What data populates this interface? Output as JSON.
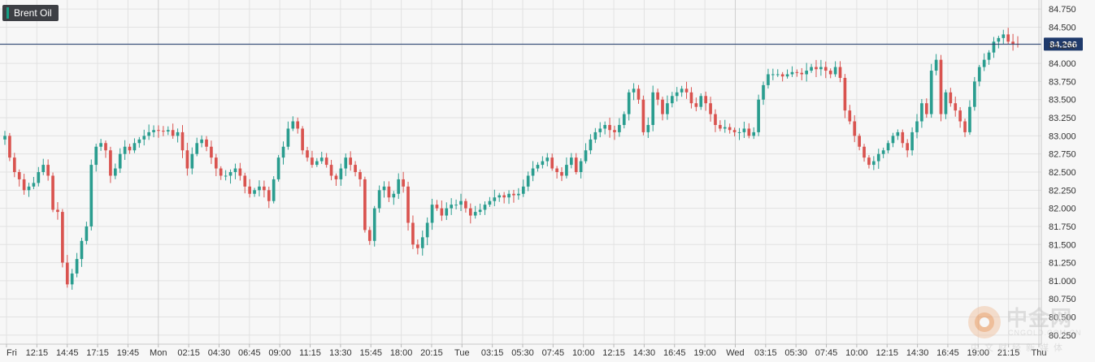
{
  "series_label": "Brent Oil",
  "current_price_label": "84.266",
  "colors": {
    "up": "#2a9d8f",
    "down": "#d9534f",
    "current_line": "#1f3a6b",
    "grid": "#e2e2e2",
    "axis_text": "#333333",
    "badge_bg": "#3d3f44"
  },
  "watermark": {
    "name": "中金网",
    "sub": "CNGOLD.COM.CN",
    "cn": "中文财经新媒体"
  },
  "chart_data": {
    "type": "candlestick",
    "title": "",
    "ylim": [
      80.125,
      84.875
    ],
    "y_ticks": [
      "84.750",
      "84.500",
      "84.250",
      "84.000",
      "83.750",
      "83.500",
      "83.250",
      "83.000",
      "82.750",
      "82.500",
      "82.250",
      "82.000",
      "81.750",
      "81.500",
      "81.250",
      "81.000",
      "80.750",
      "80.500",
      "80.250"
    ],
    "x_ticks": [
      "Fri",
      "12:15",
      "14:45",
      "17:15",
      "19:45",
      "Mon",
      "02:15",
      "04:30",
      "06:45",
      "09:00",
      "11:15",
      "13:30",
      "15:45",
      "18:00",
      "20:15",
      "Tue",
      "03:15",
      "05:30",
      "07:45",
      "10:00",
      "12:15",
      "14:30",
      "16:45",
      "19:00",
      "Wed",
      "03:15",
      "05:30",
      "07:45",
      "10:00",
      "12:15",
      "14:30",
      "16:45",
      "19:00",
      "21:15",
      "Thu"
    ],
    "day_separators": [
      "Mon",
      "Tue",
      "Wed",
      "Thu"
    ],
    "current_price": 84.266,
    "closes": [
      83.0,
      82.7,
      82.5,
      82.4,
      82.25,
      82.3,
      82.35,
      82.5,
      82.6,
      82.45,
      81.98,
      81.95,
      81.25,
      80.95,
      81.1,
      81.3,
      81.55,
      81.75,
      82.6,
      82.85,
      82.9,
      82.8,
      82.45,
      82.55,
      82.75,
      82.85,
      82.8,
      82.9,
      82.95,
      83.0,
      83.05,
      83.08,
      83.07,
      83.06,
      83.08,
      83.0,
      83.05,
      82.8,
      82.55,
      82.75,
      82.9,
      82.95,
      82.85,
      82.7,
      82.55,
      82.45,
      82.45,
      82.5,
      82.55,
      82.45,
      82.3,
      82.2,
      82.25,
      82.3,
      82.25,
      82.1,
      82.4,
      82.7,
      82.85,
      83.1,
      83.2,
      83.1,
      82.8,
      82.7,
      82.6,
      82.65,
      82.7,
      82.6,
      82.45,
      82.4,
      82.55,
      82.7,
      82.6,
      82.5,
      82.4,
      81.7,
      81.55,
      82.0,
      82.25,
      82.3,
      82.15,
      82.2,
      82.4,
      82.3,
      81.8,
      81.5,
      81.45,
      81.6,
      81.8,
      82.05,
      82.0,
      81.9,
      82.0,
      82.05,
      82.05,
      82.1,
      82.0,
      81.9,
      81.95,
      81.98,
      82.05,
      82.1,
      82.15,
      82.18,
      82.15,
      82.2,
      82.18,
      82.2,
      82.3,
      82.45,
      82.55,
      82.6,
      82.65,
      82.7,
      82.55,
      82.5,
      82.45,
      82.6,
      82.7,
      82.5,
      82.65,
      82.8,
      82.95,
      83.05,
      83.1,
      83.15,
      83.08,
      83.05,
      83.15,
      83.3,
      83.6,
      83.65,
      83.5,
      83.05,
      83.15,
      83.6,
      83.5,
      83.3,
      83.45,
      83.55,
      83.6,
      83.65,
      83.6,
      83.45,
      83.4,
      83.55,
      83.45,
      83.3,
      83.15,
      83.1,
      83.12,
      83.08,
      83.05,
      83.05,
      83.1,
      83.0,
      83.05,
      83.5,
      83.7,
      83.85,
      83.85,
      83.85,
      83.82,
      83.85,
      83.88,
      83.87,
      83.85,
      83.9,
      83.95,
      83.92,
      83.95,
      83.9,
      83.85,
      83.95,
      83.8,
      83.35,
      83.2,
      83.0,
      82.85,
      82.7,
      82.6,
      82.65,
      82.75,
      82.8,
      82.9,
      83.0,
      83.05,
      82.9,
      82.8,
      83.05,
      83.2,
      83.45,
      83.3,
      83.9,
      84.05,
      83.3,
      83.6,
      83.45,
      83.35,
      83.2,
      83.05,
      83.4,
      83.75,
      83.95,
      84.05,
      84.15,
      84.3,
      84.35,
      84.4,
      84.3,
      84.27,
      84.266
    ]
  }
}
